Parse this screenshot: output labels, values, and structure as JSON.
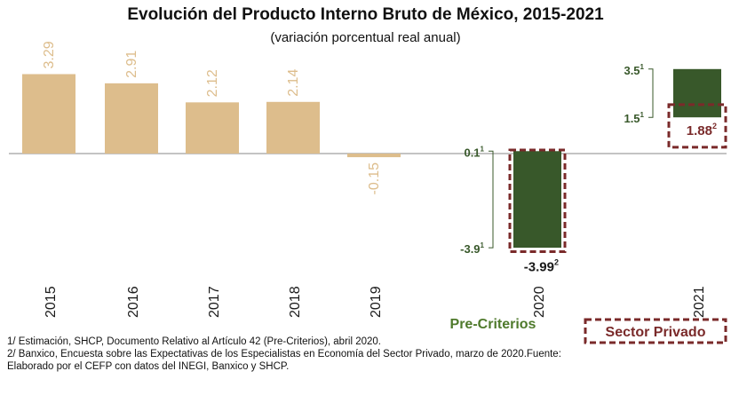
{
  "chart_data": {
    "type": "bar",
    "title": "Evolución del Producto Interno Bruto de México, 2015-2021",
    "subtitle": "(variación porcentual real anual)",
    "categories": [
      "2015",
      "2016",
      "2017",
      "2018",
      "2019",
      "2020",
      "2021"
    ],
    "series": [
      {
        "values": [
          3.29,
          2.91,
          2.12,
          2.14,
          -0.15,
          null,
          null
        ],
        "value_labels": [
          "3.29",
          "2.91",
          "2.12",
          "2.14",
          "-0.15",
          "",
          ""
        ],
        "color": "#DDBD8C"
      }
    ],
    "ranges": [
      {
        "category": "2020",
        "high": 0.1,
        "low": -3.9,
        "high_label": "0.1",
        "low_label": "-3.9",
        "high_sup": "1",
        "low_sup": "1",
        "color": "#38582A"
      },
      {
        "category": "2021",
        "high": 3.5,
        "low": 1.5,
        "high_label": "3.5",
        "low_label": "1.5",
        "high_sup": "1",
        "low_sup": "1",
        "color": "#38582A"
      }
    ],
    "private_sector": [
      {
        "category": "2020",
        "value": -3.99,
        "label": "-3.99",
        "sup": "2"
      },
      {
        "category": "2021",
        "value": 1.88,
        "label": "1.88",
        "sup": "2"
      }
    ],
    "legend": [
      {
        "label": "Pre-Criterios",
        "color": "#4F7A2C"
      },
      {
        "label": "Sector Privado",
        "color": "#7A2A2A"
      }
    ],
    "ylim": [
      -4.2,
      3.4
    ],
    "grid": false
  },
  "footnotes": [
    "1/ Estimación, SHCP, Documento Relativo al Artículo 42 (Pre-Criterios), abril 2020.",
    "2/ Banxico, Encuesta sobre las Expectativas de los Especialistas en Economía del Sector Privado, marzo de 2020.Fuente:",
    "Elaborado por el CEFP con datos del INEGI, Banxico y SHCP."
  ]
}
